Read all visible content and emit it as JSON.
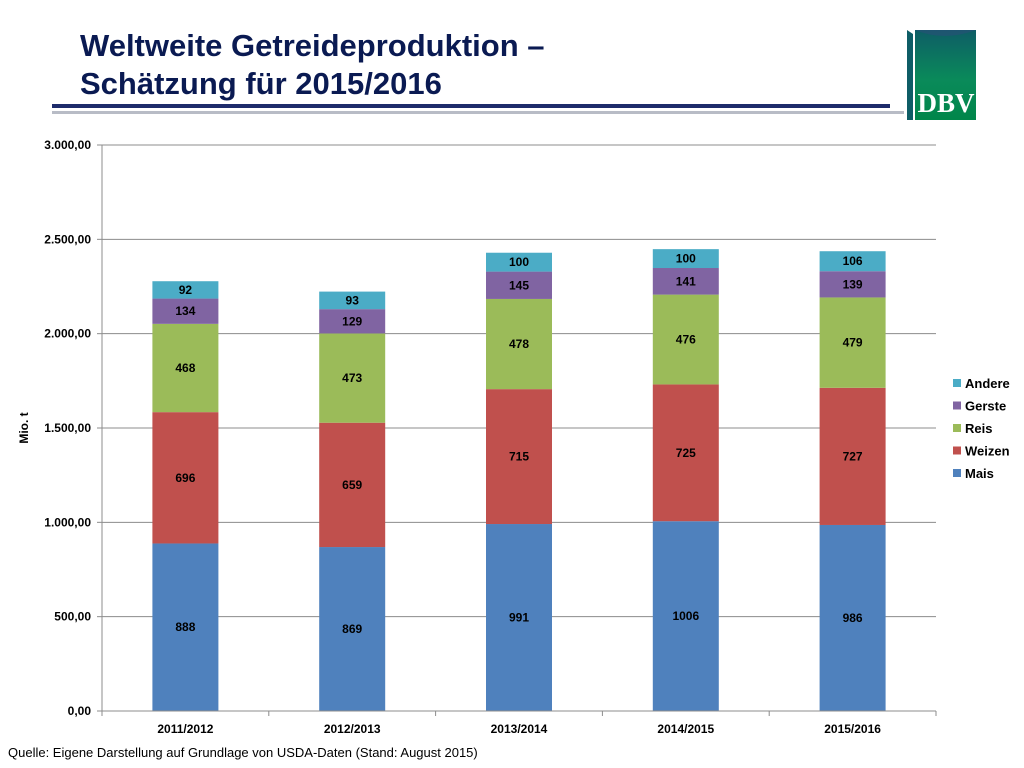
{
  "title": {
    "line1": "Weltweite Getreideproduktion –",
    "line2": "Schätzung für 2015/2016"
  },
  "logo": {
    "text": "DBV"
  },
  "colors": {
    "Mais": "#4f81bd",
    "Weizen": "#c0504d",
    "Reis": "#9bbb59",
    "Gerste": "#8064a2",
    "Andere": "#4bacc6",
    "title": "#0a1a52",
    "logo_green": "#00864a"
  },
  "chart_data": {
    "type": "bar",
    "stacked": true,
    "title": "",
    "xlabel": "",
    "ylabel": "Mio. t",
    "ylim": [
      0,
      3000
    ],
    "yticks": [
      0,
      500,
      1000,
      1500,
      2000,
      2500,
      3000
    ],
    "ytick_labels": [
      "0,00",
      "500,00",
      "1.000,00",
      "1.500,00",
      "2.000,00",
      "2.500,00",
      "3.000,00"
    ],
    "grid": true,
    "legend_position": "right",
    "legend_order": [
      "Andere",
      "Gerste",
      "Reis",
      "Weizen",
      "Mais"
    ],
    "categories": [
      "2011/2012",
      "2012/2013",
      "2013/2014",
      "2014/2015",
      "2015/2016"
    ],
    "series": [
      {
        "name": "Mais",
        "values": [
          888,
          869,
          991,
          1006,
          986
        ]
      },
      {
        "name": "Weizen",
        "values": [
          696,
          659,
          715,
          725,
          727
        ]
      },
      {
        "name": "Reis",
        "values": [
          468,
          473,
          478,
          476,
          479
        ]
      },
      {
        "name": "Gerste",
        "values": [
          134,
          129,
          145,
          141,
          139
        ]
      },
      {
        "name": "Andere",
        "values": [
          92,
          93,
          100,
          100,
          106
        ]
      }
    ]
  },
  "source": "Quelle: Eigene Darstellung auf Grundlage von USDA-Daten (Stand: August 2015)"
}
